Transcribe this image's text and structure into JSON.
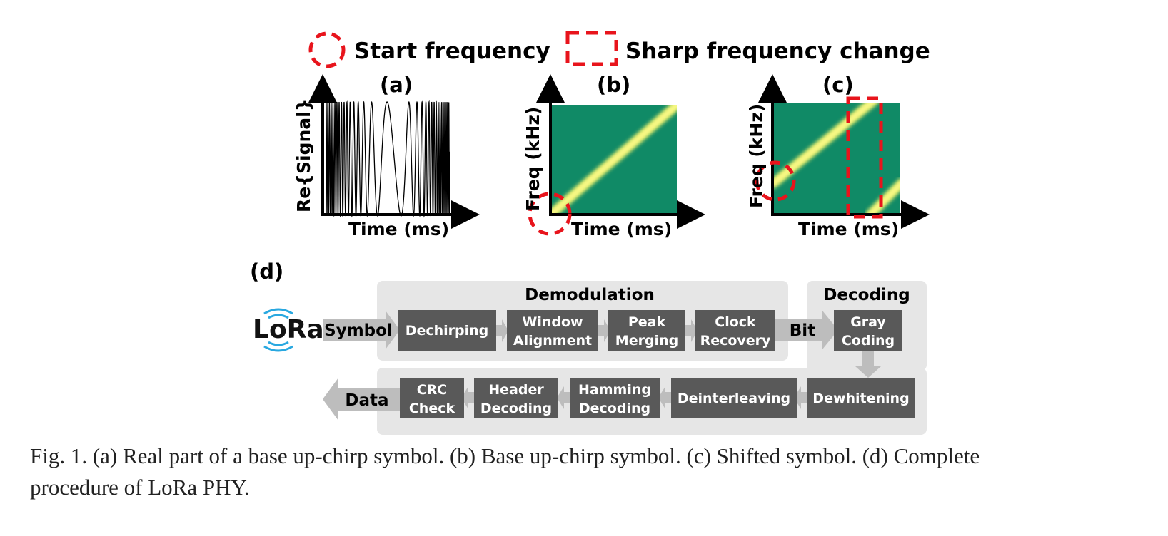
{
  "legend": {
    "start_label": "Start frequency",
    "sharp_label": "Sharp frequency change"
  },
  "panels": {
    "a": {
      "tag": "(a)",
      "ylabel": "Re{Signal}",
      "xlabel": "Time (ms)"
    },
    "b": {
      "tag": "(b)",
      "ylabel": "Freq (kHz)",
      "xlabel": "Time (ms)"
    },
    "c": {
      "tag": "(c)",
      "ylabel": "Freq (kHz)",
      "xlabel": "Time (ms)"
    }
  },
  "pipeline": {
    "tag": "(d)",
    "logo": "LoRa",
    "demodulation_title": "Demodulation",
    "decoding_title": "Decoding",
    "symbol_label": "Symbol",
    "bit_label": "Bit",
    "data_label": "Data",
    "top_steps": [
      {
        "line1": "Dechirping",
        "line2": ""
      },
      {
        "line1": "Window",
        "line2": "Alignment"
      },
      {
        "line1": "Peak",
        "line2": "Merging"
      },
      {
        "line1": "Clock",
        "line2": "Recovery"
      }
    ],
    "gray_coding": {
      "line1": "Gray",
      "line2": "Coding"
    },
    "bottom_steps": [
      {
        "line1": "Dewhitening",
        "line2": ""
      },
      {
        "line1": "Deinterleaving",
        "line2": ""
      },
      {
        "line1": "Hamming",
        "line2": "Decoding"
      },
      {
        "line1": "Header",
        "line2": "Decoding"
      },
      {
        "line1": "CRC",
        "line2": "Check"
      }
    ]
  },
  "caption": {
    "line1": "Fig. 1.  (a) Real part of a base up-chirp symbol. (b) Base up-chirp symbol. (c) Shifted symbol. (d) Complete",
    "line2": "procedure of LoRa PHY."
  },
  "colors": {
    "spectrogram_bg": "#108a66",
    "chirp": "#f4f46a",
    "marker": "#e8141c",
    "step_box": "#595959",
    "group_bg": "#e6e6e6",
    "arrow": "#bdbdbd"
  }
}
